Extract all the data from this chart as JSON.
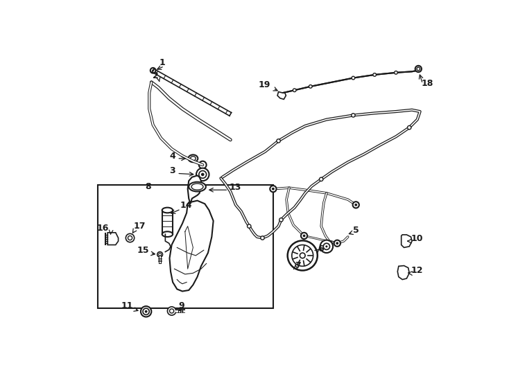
{
  "bg_color": "#ffffff",
  "line_color": "#1a1a1a",
  "parts_labels": {
    "1": [
      190,
      38,
      242,
      45,
      "right"
    ],
    "2": [
      178,
      62,
      210,
      72,
      "right"
    ],
    "3": [
      208,
      238,
      248,
      245,
      "right"
    ],
    "4": [
      208,
      215,
      238,
      213,
      "right"
    ],
    "5": [
      536,
      352,
      526,
      355,
      "left"
    ],
    "6": [
      473,
      385,
      473,
      378,
      "left"
    ],
    "7": [
      430,
      415,
      445,
      405,
      "left"
    ],
    "8": [
      152,
      270,
      165,
      272,
      "left"
    ],
    "9": [
      222,
      497,
      207,
      500,
      "right"
    ],
    "10": [
      645,
      368,
      638,
      368,
      "left"
    ],
    "11": [
      130,
      497,
      148,
      500,
      "right"
    ],
    "12": [
      645,
      428,
      634,
      425,
      "left"
    ],
    "13": [
      305,
      272,
      270,
      275,
      "left"
    ],
    "14": [
      215,
      305,
      230,
      320,
      "left"
    ],
    "15": [
      162,
      390,
      175,
      392,
      "right"
    ],
    "16": [
      85,
      352,
      95,
      358,
      "right"
    ],
    "17": [
      130,
      348,
      132,
      358,
      "left"
    ],
    "18": [
      668,
      75,
      660,
      62,
      "left"
    ],
    "19": [
      388,
      82,
      408,
      90,
      "right"
    ]
  }
}
